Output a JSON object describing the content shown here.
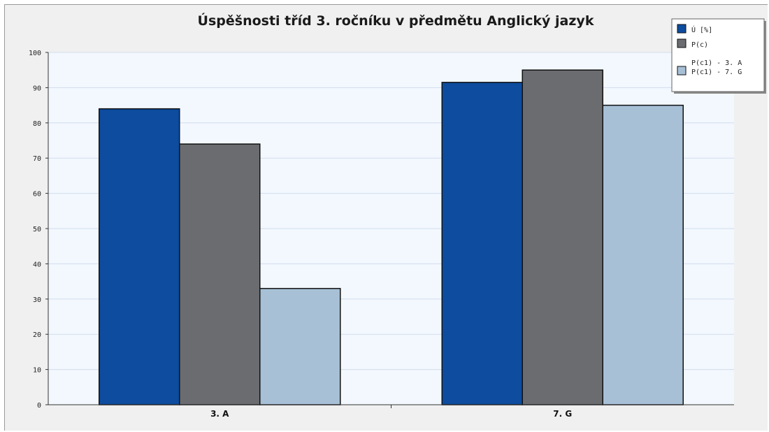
{
  "chart_data": {
    "type": "bar",
    "title": "Úspěšnosti tříd 3. ročníku v předmětu Anglický jazyk",
    "xlabel": "",
    "ylabel": "",
    "categories": [
      "3. A",
      "7. G"
    ],
    "series": [
      {
        "name": "Ú [%]",
        "values": [
          84,
          91.5
        ],
        "color": "#0d4c9e"
      },
      {
        "name": "P(c)",
        "values": [
          74,
          95
        ],
        "color": "#6b6c70"
      },
      {
        "name": "P(c1) - 3. A\nP(c1) - 7. G",
        "values": [
          33,
          85
        ],
        "color": "#a7c0d6"
      }
    ],
    "legend_labels": [
      "Ú [%]",
      "P(c)",
      "P(c1) - 3. A",
      "P(c1) - 7. G"
    ],
    "ylim": [
      0,
      100
    ],
    "yticks": [
      "0",
      "10",
      "20",
      "30",
      "40",
      "50",
      "60",
      "70",
      "80",
      "90",
      "100"
    ],
    "grid": true,
    "legend_position": "top-right",
    "colors": {
      "plot_bg": "#f3f8fe",
      "page_bg": "#f0f0f0",
      "grid": "#d2dcec"
    }
  }
}
